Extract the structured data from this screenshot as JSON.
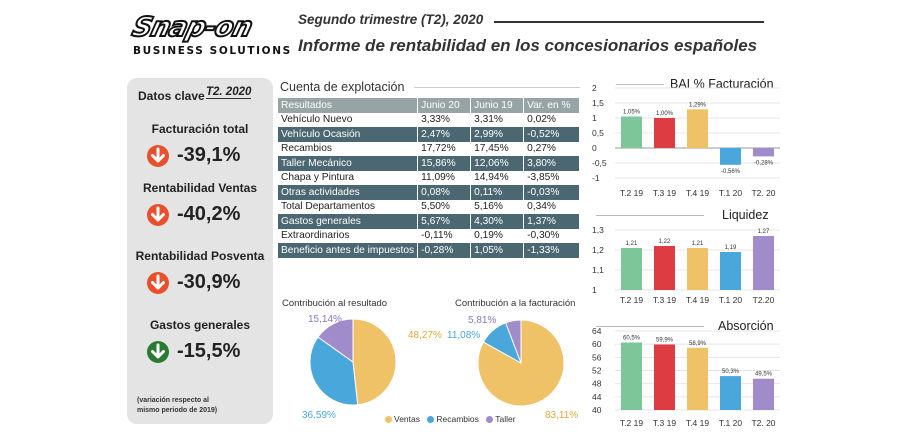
{
  "header": {
    "logo": "Snap-on",
    "logo_sub": "BUSINESS SOLUTIONS",
    "subtitle": "Segundo trimestre (T2), 2020",
    "title": "Informe de rentabilidad en los concesionarios españoles"
  },
  "key_data": {
    "label": "Datos clave",
    "period": "T2. 2020",
    "kpis": [
      {
        "label": "Facturación total",
        "value": "-39,1%",
        "direction": "down",
        "color": "#e8502d"
      },
      {
        "label": "Rentabilidad Ventas",
        "value": "-40,2%",
        "direction": "down",
        "color": "#e8502d"
      },
      {
        "label": "Rentabilidad Posventa",
        "value": "-30,9%",
        "direction": "down",
        "color": "#e8502d"
      },
      {
        "label": "Gastos generales",
        "value": "-15,5%",
        "direction": "down",
        "color": "#2a7a32"
      }
    ],
    "footnote_1": "(variación respecto al",
    "footnote_2": "mismo periodo de 2019)"
  },
  "table": {
    "title": "Cuenta de explotación",
    "headers": [
      "Resultados",
      "Junio 20",
      "Junio 19",
      "Var. en %"
    ],
    "rows": [
      {
        "cells": [
          "Vehículo Nuevo",
          "3,33%",
          "3,31%",
          "0,02%"
        ],
        "style": "light"
      },
      {
        "cells": [
          "Vehículo Ocasión",
          "2,47%",
          "2,99%",
          "-0,52%"
        ],
        "style": "dark"
      },
      {
        "cells": [
          "Recambios",
          "17,72%",
          "17,45%",
          "0,27%"
        ],
        "style": "light"
      },
      {
        "cells": [
          "Taller Mecánico",
          "15,86%",
          "12,06%",
          "3,80%"
        ],
        "style": "dark"
      },
      {
        "cells": [
          "Chapa y Pintura",
          "11,09%",
          "14,94%",
          "-3,85%"
        ],
        "style": "light"
      },
      {
        "cells": [
          "Otras actividades",
          "0,08%",
          "0,11%",
          "-0,03%"
        ],
        "style": "dark"
      },
      {
        "cells": [
          "Total Departamentos",
          "5,50%",
          "5,16%",
          "0,34%"
        ],
        "style": "light"
      },
      {
        "cells": [
          "Gastos generales",
          "5,67%",
          "4,30%",
          "1,37%"
        ],
        "style": "dark"
      },
      {
        "cells": [
          "Extraordinarios",
          "-0,11%",
          "0,19%",
          "-0,30%"
        ],
        "style": "light"
      },
      {
        "cells": [
          "Beneficio antes de impuestos",
          "-0,28%",
          "1,05%",
          "-1,33%"
        ],
        "style": "dark"
      }
    ]
  },
  "colors": {
    "ventas": "#f0c268",
    "recambios": "#4aa7dc",
    "taller": "#a18ccb",
    "green": "#7cc69a",
    "red": "#dd3c42",
    "yellow": "#f0c268",
    "blue": "#4aa7dc",
    "purple": "#a18ccb"
  },
  "chart_data": [
    {
      "type": "pie",
      "title": "Contribución al resultado",
      "labels": [
        "Ventas",
        "Recambios",
        "Taller"
      ],
      "values": [
        48.27,
        36.59,
        15.14
      ],
      "value_labels": [
        "48,27%",
        "36,59%",
        "15,14%"
      ]
    },
    {
      "type": "pie",
      "title": "Contribución a la facturación",
      "labels": [
        "Ventas",
        "Recambios",
        "Taller"
      ],
      "values": [
        83.11,
        11.08,
        5.81
      ],
      "value_labels": [
        "83,11%",
        "11,08%",
        "5,81%"
      ]
    },
    {
      "type": "bar",
      "title": "BAI % Facturación",
      "categories": [
        "T.2 19",
        "T.3 19",
        "T.4 19",
        "T.1 20",
        "T2. 20"
      ],
      "values": [
        1.05,
        1.0,
        1.29,
        -0.56,
        -0.28
      ],
      "value_labels": [
        "1,05%",
        "1,00%",
        "1,29%",
        "-0,56%",
        "-0,28%"
      ],
      "ylim": [
        -1,
        2
      ],
      "yticks": [
        "2",
        "1,5",
        "1",
        "0,5",
        "0",
        "-0,5",
        "-1"
      ],
      "ytick_values": [
        2,
        1.5,
        1,
        0.5,
        0,
        -0.5,
        -1
      ]
    },
    {
      "type": "bar",
      "title": "Liquidez",
      "categories": [
        "T.2 19",
        "T.3 19",
        "T.4 19",
        "T.1 20",
        "T2.20"
      ],
      "values": [
        1.21,
        1.22,
        1.21,
        1.19,
        1.27
      ],
      "value_labels": [
        "1,21",
        "1,22",
        "1,21",
        "1,19",
        "1,27"
      ],
      "ylim": [
        1,
        1.3
      ],
      "yticks": [
        "1,3",
        "1,2",
        "1,1",
        "1"
      ],
      "ytick_values": [
        1.3,
        1.2,
        1.1,
        1
      ]
    },
    {
      "type": "bar",
      "title": "Absorción",
      "categories": [
        "T.2 19",
        "T.3 19",
        "T.4 19",
        "T.1 20",
        "T2. 20"
      ],
      "values": [
        60.5,
        59.9,
        58.9,
        50.3,
        49.5
      ],
      "value_labels": [
        "60,5%",
        "59,9%",
        "58,9%",
        "50,3%",
        "49,5%"
      ],
      "ylim": [
        40,
        64
      ],
      "yticks": [
        "64",
        "60",
        "56",
        "52",
        "48",
        "44",
        "40"
      ],
      "ytick_values": [
        64,
        60,
        56,
        52,
        48,
        44,
        40
      ]
    }
  ]
}
